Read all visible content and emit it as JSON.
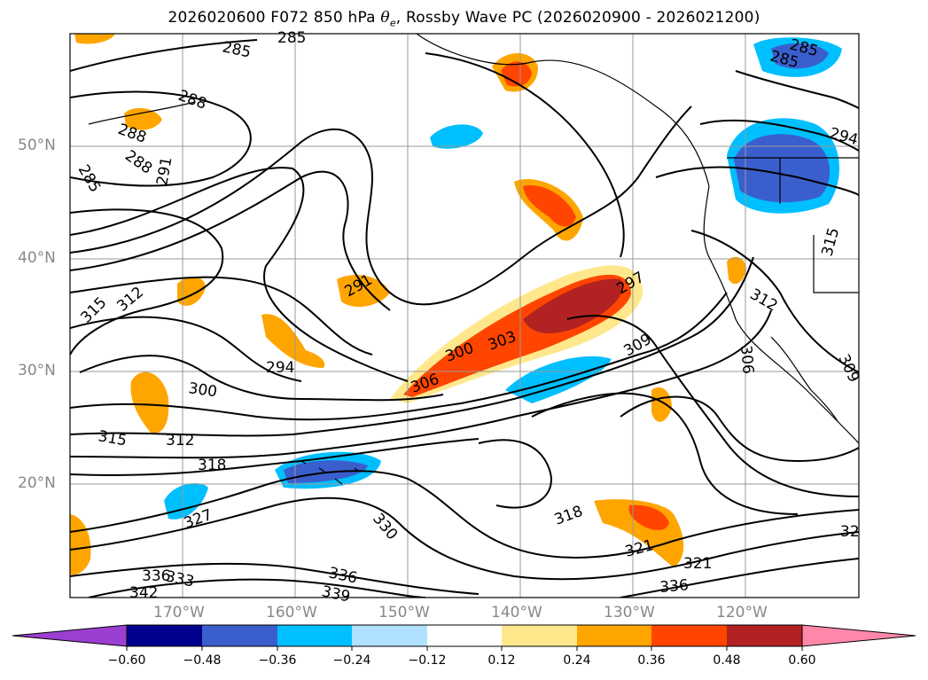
{
  "title": {
    "prefix": "2026020600 F072 850 hPa ",
    "theta": "θ",
    "sub": "e",
    "suffix": ", Rossby Wave PC (2026020900 - 2026021200)"
  },
  "map": {
    "lat_labels": [
      "50°N",
      "40°N",
      "30°N",
      "20°N"
    ],
    "lon_labels": [
      "170°W",
      "160°W",
      "150°W",
      "140°W",
      "130°W",
      "120°W"
    ],
    "contour_labels": [
      "285",
      "285",
      "288",
      "288",
      "285",
      "288",
      "291",
      "291",
      "294",
      "294",
      "297",
      "300",
      "303",
      "306",
      "309",
      "312",
      "312",
      "315",
      "315",
      "312",
      "300",
      "306",
      "309",
      "318",
      "321",
      "327",
      "330",
      "333",
      "336",
      "336",
      "339",
      "336",
      "342",
      "318",
      "321",
      "315",
      "32",
      "285",
      "285"
    ]
  },
  "colorbar": {
    "ticks": [
      "−0.60",
      "−0.48",
      "−0.36",
      "−0.24",
      "−0.12",
      "0.12",
      "0.24",
      "0.36",
      "0.48",
      "0.60"
    ],
    "colors": [
      "#9b3fd1",
      "#00008c",
      "#3a5fcd",
      "#00bfff",
      "#b0e2ff",
      "#ffffff",
      "#ffe88c",
      "#ffa500",
      "#ff4500",
      "#b22222",
      "#ff88aa"
    ]
  }
}
